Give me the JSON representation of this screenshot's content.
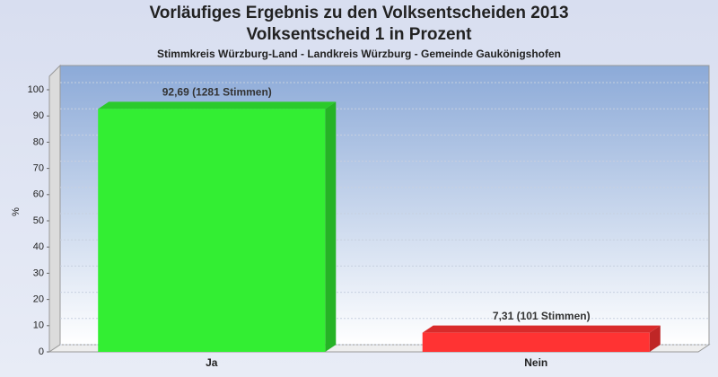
{
  "chart_data": {
    "type": "bar",
    "title_lines": [
      "Vorläufiges Ergebnis zu den Volksentscheiden 2013",
      "Volksentscheid 1 in Prozent"
    ],
    "subtitle": "Stimmkreis Würzburg-Land - Landkreis Würzburg - Gemeinde Gaukönigshofen",
    "y_label": "%",
    "categories": [
      "Ja",
      "Nein"
    ],
    "values": [
      92.69,
      7.31
    ],
    "value_labels": [
      "92,69 (1281 Stimmen)",
      "7,31 (101 Stimmen)"
    ],
    "colors": [
      "#33ee33",
      "#ff3333"
    ],
    "ylim": [
      0,
      100
    ],
    "yticks": [
      0,
      10,
      20,
      30,
      40,
      50,
      60,
      70,
      80,
      90,
      100
    ],
    "grid": true
  }
}
